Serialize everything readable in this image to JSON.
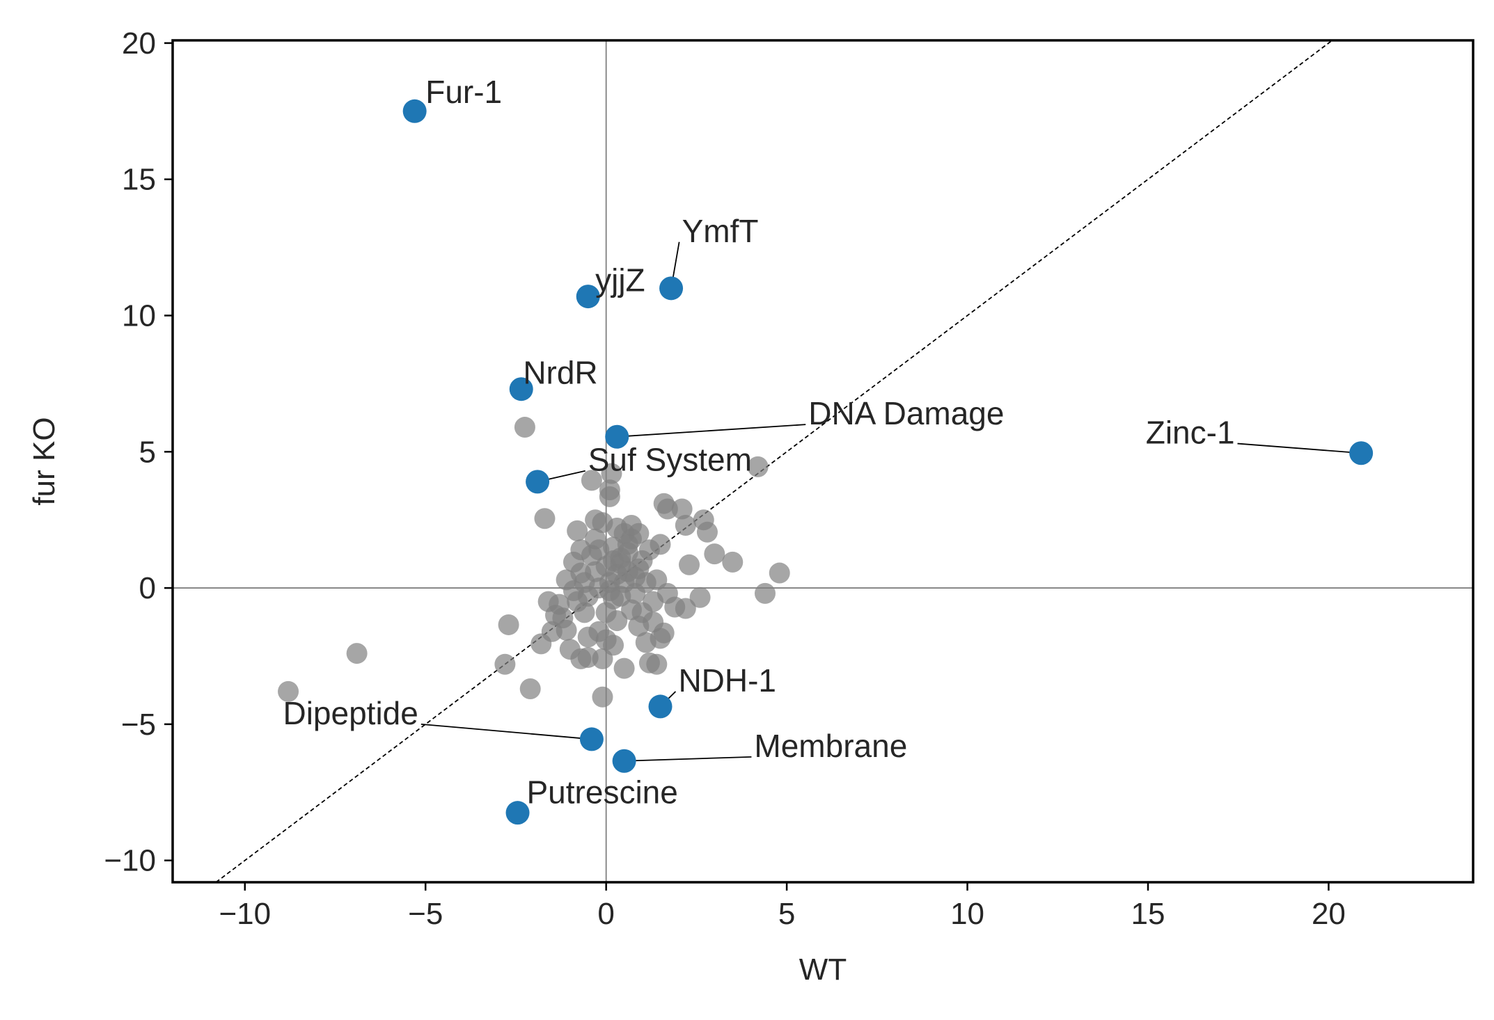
{
  "chart_data": {
    "type": "scatter",
    "xlabel": "WT",
    "ylabel": "fur KO",
    "xlim": [
      -12,
      24
    ],
    "ylim": [
      -10.8,
      20.1
    ],
    "xticks": [
      -10,
      -5,
      0,
      5,
      10,
      15,
      20
    ],
    "yticks": [
      -10,
      -5,
      0,
      5,
      10,
      15,
      20
    ],
    "xtick_labels": [
      "−10",
      "−5",
      "0",
      "5",
      "10",
      "15",
      "20"
    ],
    "ytick_labels": [
      "−10",
      "−5",
      "0",
      "5",
      "10",
      "15",
      "20"
    ],
    "grid": false,
    "reference_lines": {
      "x_zero": true,
      "y_zero": true,
      "diagonal_y_equals_x": true
    },
    "colors": {
      "highlight": "#1f77b4",
      "background_points": "#808080",
      "zero_lines": "#808080",
      "diagonal": "#000000"
    },
    "highlighted": [
      {
        "label": "Fur-1",
        "x": -5.3,
        "y": 17.5,
        "label_x": -5.0,
        "label_y": 17.8
      },
      {
        "label": "YmfT",
        "x": 1.8,
        "y": 11.0,
        "label_x": 2.1,
        "label_y": 12.7
      },
      {
        "label": "yjjZ",
        "x": -0.5,
        "y": 10.7,
        "label_x": -0.3,
        "label_y": 10.9
      },
      {
        "label": "NrdR",
        "x": -2.35,
        "y": 7.3,
        "label_x": -2.3,
        "label_y": 7.5
      },
      {
        "label": "DNA Damage",
        "x": 0.3,
        "y": 5.55,
        "label_x": 5.6,
        "label_y": 6.0
      },
      {
        "label": "Zinc-1",
        "x": 20.9,
        "y": 4.95,
        "label_x": 17.4,
        "label_y": 5.3
      },
      {
        "label": "Suf System",
        "x": -1.9,
        "y": 3.9,
        "label_x": -0.5,
        "label_y": 4.3
      },
      {
        "label": "NDH-1",
        "x": 1.5,
        "y": -4.35,
        "label_x": 2.0,
        "label_y": -3.8
      },
      {
        "label": "Dipeptide",
        "x": -0.4,
        "y": -5.55,
        "label_x": -5.2,
        "label_y": -5.0
      },
      {
        "label": "Membrane",
        "x": 0.5,
        "y": -6.35,
        "label_x": 4.1,
        "label_y": -6.2
      },
      {
        "label": "Putrescine",
        "x": -2.45,
        "y": -8.25,
        "label_x": -2.2,
        "label_y": -7.9
      }
    ],
    "background_points": [
      [
        -8.8,
        -3.8
      ],
      [
        -6.9,
        -2.4
      ],
      [
        -2.8,
        -2.8
      ],
      [
        -2.7,
        -1.35
      ],
      [
        -2.1,
        -3.7
      ],
      [
        -2.25,
        5.9
      ],
      [
        -1.7,
        2.55
      ],
      [
        -0.4,
        3.95
      ],
      [
        0.1,
        3.6
      ],
      [
        0.15,
        4.2
      ],
      [
        0.1,
        3.35
      ],
      [
        -0.3,
        2.5
      ],
      [
        -0.8,
        2.1
      ],
      [
        4.2,
        4.45
      ],
      [
        4.8,
        0.55
      ],
      [
        4.4,
        -0.2
      ],
      [
        3.5,
        0.95
      ],
      [
        3.0,
        1.25
      ],
      [
        2.8,
        2.05
      ],
      [
        2.7,
        2.5
      ],
      [
        2.2,
        2.3
      ],
      [
        2.1,
        2.9
      ],
      [
        1.6,
        3.1
      ],
      [
        1.7,
        2.9
      ],
      [
        1.5,
        1.6
      ],
      [
        2.3,
        0.85
      ],
      [
        2.6,
        -0.35
      ],
      [
        2.2,
        -0.75
      ],
      [
        1.9,
        -0.7
      ],
      [
        1.7,
        -0.2
      ],
      [
        1.6,
        -1.65
      ],
      [
        1.5,
        -1.85
      ],
      [
        1.4,
        -2.8
      ],
      [
        1.2,
        -2.75
      ],
      [
        1.3,
        -1.25
      ],
      [
        0.5,
        -2.95
      ],
      [
        -0.1,
        -4.0
      ],
      [
        -0.1,
        -2.6
      ],
      [
        -0.5,
        -2.55
      ],
      [
        -0.7,
        -2.6
      ],
      [
        -1.8,
        -2.05
      ],
      [
        -1.0,
        -2.25
      ],
      [
        -1.1,
        -1.55
      ],
      [
        -1.4,
        -1.0
      ],
      [
        -1.6,
        -0.5
      ],
      [
        -1.1,
        0.3
      ],
      [
        -0.9,
        0.95
      ],
      [
        -0.7,
        0.55
      ],
      [
        -0.5,
        -0.3
      ],
      [
        -0.3,
        1.8
      ],
      [
        0.2,
        1.5
      ],
      [
        0.4,
        0.9
      ],
      [
        0.6,
        1.3
      ],
      [
        0.8,
        0.4
      ],
      [
        1.0,
        1.0
      ],
      [
        0.7,
        -0.8
      ],
      [
        0.3,
        -1.2
      ],
      [
        -0.2,
        -1.6
      ],
      [
        0.9,
        -1.4
      ],
      [
        0.1,
        0.2
      ],
      [
        -0.3,
        0.6
      ],
      [
        0.5,
        2.0
      ],
      [
        0.9,
        2.0
      ],
      [
        1.1,
        0.2
      ],
      [
        0.2,
        -0.4
      ],
      [
        -0.6,
        -0.9
      ],
      [
        -0.8,
        -0.5
      ],
      [
        0.0,
        0.8
      ],
      [
        0.4,
        -0.3
      ],
      [
        1.3,
        -0.5
      ],
      [
        -1.2,
        -1.1
      ],
      [
        -0.4,
        1.2
      ],
      [
        0.6,
        0.6
      ],
      [
        1.0,
        -0.9
      ],
      [
        0.0,
        -0.9
      ],
      [
        -0.1,
        2.4
      ],
      [
        0.3,
        2.2
      ],
      [
        0.7,
        1.8
      ],
      [
        -0.9,
        -0.1
      ],
      [
        1.2,
        1.4
      ],
      [
        -0.2,
        0.0
      ],
      [
        0.2,
        1.0
      ],
      [
        0.5,
        0.2
      ],
      [
        0.8,
        -0.2
      ],
      [
        -0.6,
        0.2
      ],
      [
        -1.3,
        -0.6
      ],
      [
        0.3,
        0.5
      ],
      [
        0.1,
        -0.1
      ],
      [
        0.6,
        1.6
      ],
      [
        -0.2,
        1.4
      ],
      [
        0.4,
        1.1
      ],
      [
        0.9,
        0.7
      ],
      [
        1.4,
        0.3
      ],
      [
        -0.5,
        -1.8
      ],
      [
        0.0,
        -1.9
      ],
      [
        -0.7,
        1.4
      ],
      [
        0.2,
        -2.1
      ],
      [
        1.1,
        -2.0
      ],
      [
        -1.5,
        -1.6
      ],
      [
        0.7,
        2.3
      ]
    ]
  }
}
